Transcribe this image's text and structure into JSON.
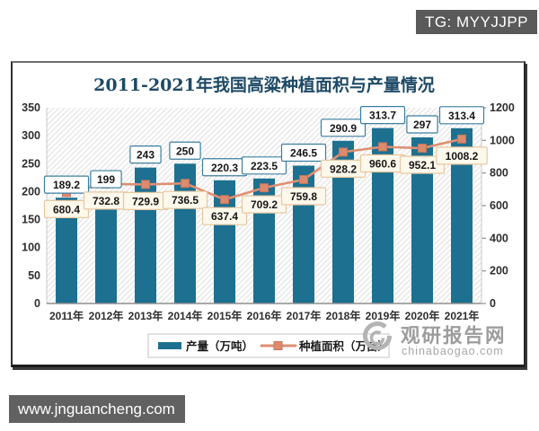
{
  "tg_label": {
    "text": "TG: MYYJJPP"
  },
  "site_bar": {
    "text": "www.jnguancheng.com"
  },
  "watermark": {
    "brand": "观研报告网",
    "domain": "chinabaogao.com"
  },
  "chart_data": {
    "type": "bar",
    "title": "2011-2021年我国高粱种植面积与产量情况",
    "categories": [
      "2011年",
      "2012年",
      "2013年",
      "2014年",
      "2015年",
      "2016年",
      "2017年",
      "2018年",
      "2019年",
      "2020年",
      "2021年"
    ],
    "series": [
      {
        "name": "产量（万吨）",
        "type": "bar",
        "axis": "left",
        "values": [
          189.2,
          199,
          243,
          250,
          220.3,
          223.5,
          246.5,
          290.9,
          313.7,
          297,
          313.4
        ],
        "color": "#1d7090",
        "label_box_fill": "#ffffff",
        "label_box_stroke": "#3b7ea1"
      },
      {
        "name": "种植面积（万亩）",
        "type": "line",
        "axis": "right",
        "values": [
          680.4,
          732.8,
          729.9,
          736.5,
          637.4,
          709.2,
          759.8,
          928.2,
          960.6,
          952.1,
          1008.2
        ],
        "color": "#df8f72",
        "marker_fill": "#dd8a6d",
        "marker_stroke": "#c3765b",
        "label_box_fill": "#fdf8ec",
        "label_box_stroke": "#e7c79f"
      }
    ],
    "left_axis": {
      "min": 0,
      "max": 350,
      "step": 50,
      "ticks": [
        0,
        50,
        100,
        150,
        200,
        250,
        300,
        350
      ]
    },
    "right_axis": {
      "min": 0,
      "max": 1200,
      "step": 200,
      "ticks": [
        0,
        200,
        400,
        600,
        800,
        1000,
        1200
      ]
    },
    "legend_position": "bottom",
    "grid": false,
    "plot_background": "diagonal-hatch",
    "style": {
      "title_color": "#1e4a66",
      "axis_line_color": "#8f8f8f",
      "side_axis_color": "#c9c9c9",
      "tick_label_color": "#2e2e2e",
      "hatch_color": "#e3e3e3",
      "data_label_color": "#161616",
      "legend_border": "#c4c4c4",
      "watermark_color": "#9c9c9c"
    }
  }
}
